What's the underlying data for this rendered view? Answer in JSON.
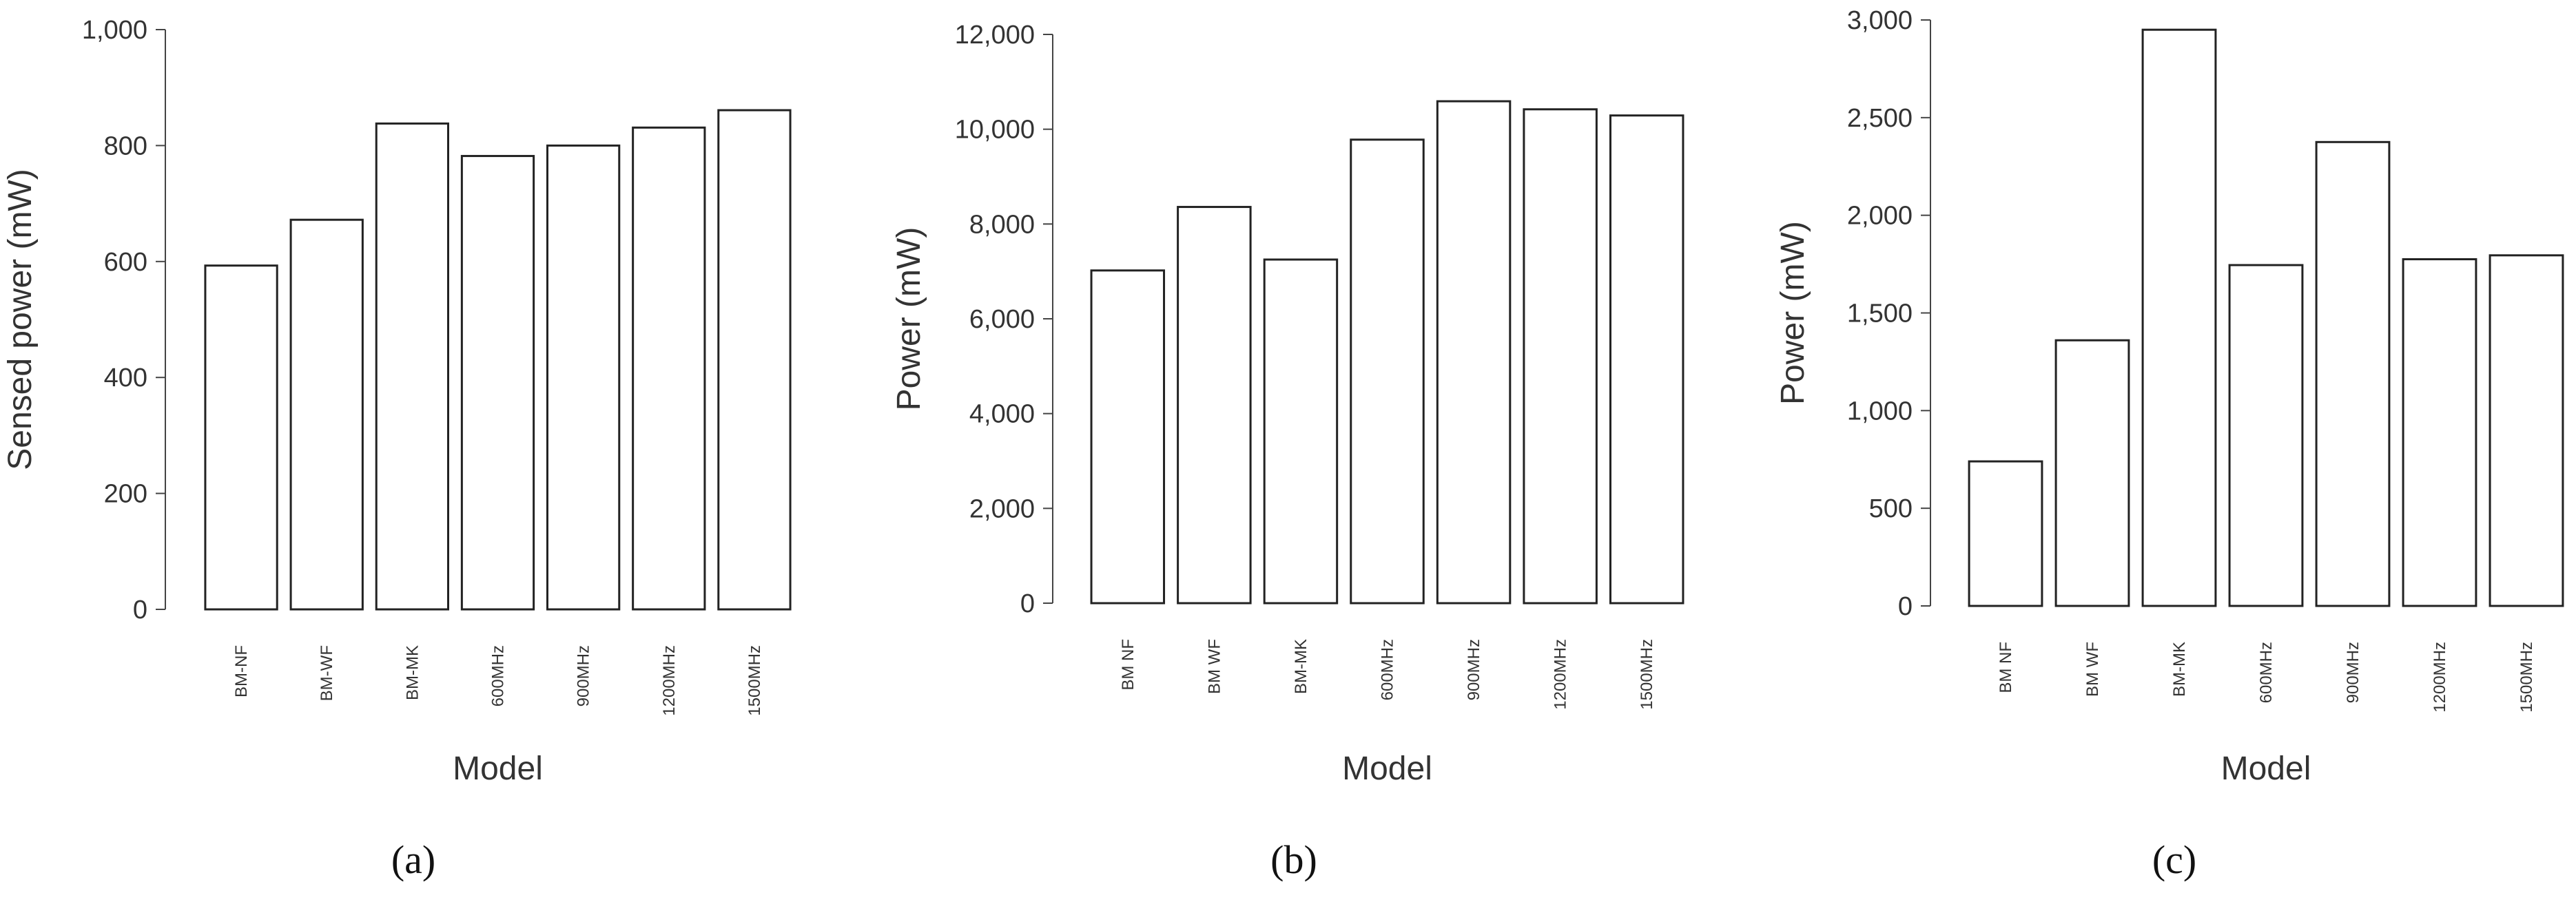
{
  "chart_data": [
    {
      "type": "bar",
      "panel_label": "(a)",
      "categories": [
        "BM-NF",
        "BM-WF",
        "BM-MK",
        "600MHz",
        "900MHz",
        "1200MHz",
        "1500MHz"
      ],
      "values": [
        593,
        672,
        838,
        782,
        800,
        831,
        861
      ],
      "xlabel": "Model",
      "ylabel": "Sensed power (mW)",
      "ylim": [
        0,
        1000
      ],
      "yticks": [
        0,
        200,
        400,
        600,
        800,
        1000
      ],
      "ytick_labels": [
        "0",
        "200",
        "400",
        "600",
        "800",
        "1,000"
      ],
      "grid": false,
      "legend": "none"
    },
    {
      "type": "bar",
      "panel_label": "(b)",
      "categories": [
        "BM NF",
        "BM WF",
        "BM-MK",
        "600MHz",
        "900MHz",
        "1200MHz",
        "1500MHz"
      ],
      "values": [
        7020,
        8360,
        7250,
        9780,
        10590,
        10420,
        10290
      ],
      "xlabel": "Model",
      "ylabel": "Power (mW)",
      "ylim": [
        0,
        12000
      ],
      "yticks": [
        0,
        2000,
        4000,
        6000,
        8000,
        10000,
        12000
      ],
      "ytick_labels": [
        "0",
        "2,000",
        "4,000",
        "6,000",
        "8,000",
        "10,000",
        "12,000"
      ],
      "grid": false,
      "legend": "none"
    },
    {
      "type": "bar",
      "panel_label": "(c)",
      "categories": [
        "BM NF",
        "BM WF",
        "BM-MK",
        "600MHz",
        "900MHz",
        "1200MHz",
        "1500MHz"
      ],
      "values": [
        740,
        1360,
        2950,
        1745,
        2375,
        1775,
        1795
      ],
      "xlabel": "Model",
      "ylabel": "Power (mW)",
      "ylim": [
        0,
        3000
      ],
      "yticks": [
        0,
        500,
        1000,
        1500,
        2000,
        2500,
        3000
      ],
      "ytick_labels": [
        "0",
        "500",
        "1,000",
        "1,500",
        "2,000",
        "2,500",
        "3,000"
      ],
      "grid": false,
      "legend": "none"
    }
  ]
}
